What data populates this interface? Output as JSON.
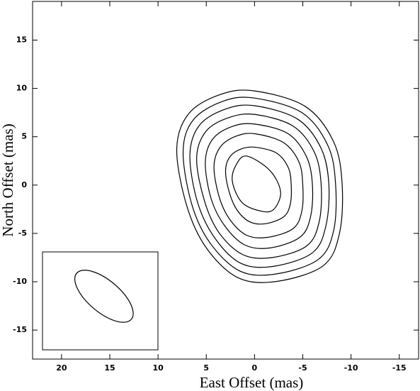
{
  "chart_data": {
    "type": "contour",
    "x_label": "East Offset (mas)",
    "y_label": "North Offset (mas)",
    "xlim": [
      23,
      -17
    ],
    "ylim": [
      -18,
      19
    ],
    "xticks": [
      20,
      15,
      10,
      5,
      0,
      -5,
      -10,
      -15
    ],
    "yticks": [
      -15,
      -10,
      -5,
      0,
      5,
      10,
      15
    ],
    "color": "#000000",
    "contours": [
      {
        "x": [
          0.8,
          -1.6,
          -2.7,
          -2.0,
          -0.7,
          1.3,
          2.3,
          1.9
        ],
        "y": [
          3.0,
          1.5,
          -0.7,
          -2.5,
          -2.7,
          -1.8,
          0.4,
          2.1
        ]
      },
      {
        "x": [
          -0.2,
          -2.3,
          -3.5,
          -3.8,
          -3.7,
          -3.0,
          -1.1,
          0.5,
          1.8,
          2.6,
          3.0,
          2.5,
          1.2
        ],
        "y": [
          3.9,
          3.3,
          1.8,
          0.0,
          -2.0,
          -3.3,
          -4.0,
          -3.8,
          -2.6,
          -0.8,
          1.5,
          3.0,
          3.8
        ]
      },
      {
        "x": [
          -0.1,
          -3.0,
          -4.6,
          -5.0,
          -4.9,
          -4.0,
          -1.4,
          0.8,
          2.6,
          3.7,
          4.2,
          3.5,
          1.8
        ],
        "y": [
          5.3,
          4.4,
          2.4,
          0.0,
          -2.7,
          -4.5,
          -5.4,
          -5.2,
          -3.5,
          -1.1,
          2.0,
          4.0,
          5.1
        ]
      },
      {
        "x": [
          -0.1,
          -3.5,
          -5.4,
          -6.0,
          -5.8,
          -4.7,
          -1.6,
          1.0,
          3.1,
          4.5,
          5.1,
          4.3,
          2.2
        ],
        "y": [
          6.3,
          5.3,
          2.9,
          0.0,
          -3.3,
          -5.4,
          -6.5,
          -6.2,
          -4.2,
          -1.4,
          2.4,
          4.8,
          6.1
        ]
      },
      {
        "x": [
          -0.1,
          -4.0,
          -6.2,
          -6.9,
          -6.7,
          -5.4,
          -1.8,
          1.2,
          3.7,
          5.2,
          6.0,
          5.0,
          2.6
        ],
        "y": [
          7.3,
          6.1,
          3.4,
          0.1,
          -3.8,
          -6.3,
          -7.5,
          -7.2,
          -4.9,
          -1.6,
          2.8,
          5.6,
          7.0
        ]
      },
      {
        "x": [
          -0.1,
          -4.5,
          -6.9,
          -7.7,
          -7.4,
          -6.0,
          -2.0,
          1.4,
          4.1,
          5.9,
          6.7,
          5.7,
          2.9
        ],
        "y": [
          8.2,
          6.8,
          3.8,
          0.1,
          -4.2,
          -7.0,
          -8.4,
          -8.1,
          -5.5,
          -1.8,
          3.1,
          6.2,
          7.9
        ]
      },
      {
        "x": [
          0.0,
          -4.9,
          -7.6,
          -8.4,
          -8.2,
          -6.6,
          -2.2,
          1.5,
          4.6,
          6.5,
          7.4,
          6.3,
          3.2
        ],
        "y": [
          9.0,
          7.5,
          4.1,
          0.1,
          -4.7,
          -7.7,
          -9.2,
          -8.9,
          -6.0,
          -2.0,
          3.5,
          6.8,
          8.7
        ]
      },
      {
        "x": [
          0.0,
          -5.27,
          -8.2,
          -9.08,
          -8.79,
          -7.11,
          -2.34,
          1.68,
          4.98,
          7.03,
          8.06,
          6.81,
          3.52
        ],
        "y": [
          9.74,
          8.13,
          4.47,
          0.07,
          -5.05,
          -8.35,
          -9.96,
          -9.6,
          -6.52,
          -2.12,
          3.74,
          7.4,
          9.38
        ]
      }
    ],
    "beam": {
      "x": 15.6,
      "y": -11.5,
      "major_axis": 7.4,
      "minor_axis": 3.3,
      "position_angle": 50
    }
  }
}
